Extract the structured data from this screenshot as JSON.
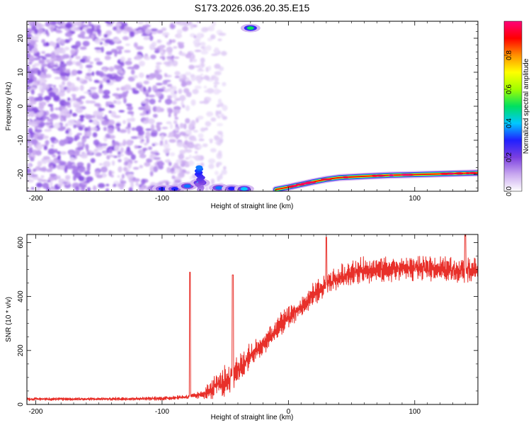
{
  "figure_title": "S173.2026.036.20.35.E15",
  "chart_data": [
    {
      "type": "heatmap",
      "name": "spectrogram",
      "title": "S173.2026.036.20.35.E15",
      "xlabel": "Height of straight line (km)",
      "ylabel": "Frequency (Hz)",
      "xlim": [
        -207,
        150
      ],
      "ylim": [
        -25,
        25
      ],
      "xticks": [
        -200,
        -100,
        0,
        100
      ],
      "xtick_labels": [
        "-200",
        "-100",
        "0",
        "100"
      ],
      "yticks": [
        -20,
        -10,
        0,
        10,
        20
      ],
      "ytick_labels": [
        "-20",
        "-10",
        "0",
        "10",
        "20"
      ],
      "grid": false,
      "features": {
        "noise_region_x": [
          -207,
          -75
        ],
        "strong_line": {
          "description": "high-amplitude narrowband line rising from near -25 Hz at the bottom edge to about -19.5 Hz at the right edge",
          "x": [
            -10,
            0,
            10,
            20,
            30,
            40,
            60,
            80,
            100,
            120,
            150
          ],
          "frequency_hz": [
            -24.5,
            -23.8,
            -23.0,
            -22.2,
            -21.5,
            -21.0,
            -20.6,
            -20.3,
            -20.1,
            -19.9,
            -19.6
          ]
        },
        "low_band_blobs": [
          {
            "x": -100,
            "frequency_hz": -24.3,
            "amplitude": 0.3
          },
          {
            "x": -90,
            "frequency_hz": -24.3,
            "amplitude": 0.3
          },
          {
            "x": -80,
            "frequency_hz": -23.5,
            "amplitude": 0.35
          },
          {
            "x": -70,
            "frequency_hz": -22.5,
            "amplitude": 0.4
          },
          {
            "x": -55,
            "frequency_hz": -24.0,
            "amplitude": 0.35
          },
          {
            "x": -45,
            "frequency_hz": -24.2,
            "amplitude": 0.3
          },
          {
            "x": -35,
            "frequency_hz": -24.3,
            "amplitude": 0.4
          },
          {
            "x": -30,
            "frequency_hz": 23.0,
            "amplitude": 0.5
          }
        ]
      },
      "colorbar": {
        "label": "Normalized spectral amplitude",
        "range": [
          0.0,
          1.0
        ],
        "ticks": [
          0.0,
          0.2,
          0.4,
          0.6,
          0.8
        ],
        "tick_labels": [
          "0.0",
          "0.2",
          "0.4",
          "0.6",
          "0.8"
        ],
        "colormap": [
          "#ffffff",
          "#c9a8ef",
          "#7b3fe0",
          "#2020ff",
          "#00c8ff",
          "#00e060",
          "#a0ff00",
          "#ffff00",
          "#ff9000",
          "#ff0000",
          "#ff007a"
        ]
      }
    },
    {
      "type": "line",
      "name": "snr",
      "title": "",
      "xlabel": "Height of straight line (km)",
      "ylabel": "SNR (10 * v/v)",
      "xlim": [
        -207,
        150
      ],
      "ylim": [
        0,
        630
      ],
      "xticks": [
        -200,
        -100,
        0,
        100
      ],
      "xtick_labels": [
        "-200",
        "-100",
        "0",
        "100"
      ],
      "yticks": [
        0,
        200,
        400,
        600
      ],
      "ytick_labels": [
        "0",
        "200",
        "400",
        "600"
      ],
      "grid": false,
      "series": [
        {
          "name": "SNR",
          "color": "#e8302a",
          "envelope_x": [
            -207,
            -150,
            -100,
            -80,
            -70,
            -60,
            -55,
            -50,
            -45,
            -40,
            -35,
            -30,
            -25,
            -20,
            -15,
            -10,
            -5,
            0,
            5,
            10,
            15,
            20,
            30,
            40,
            50,
            60,
            80,
            100,
            120,
            150
          ],
          "envelope_y": [
            20,
            20,
            22,
            28,
            35,
            55,
            70,
            80,
            110,
            130,
            150,
            180,
            200,
            220,
            250,
            275,
            300,
            320,
            340,
            360,
            380,
            410,
            440,
            470,
            490,
            500,
            500,
            505,
            500,
            500
          ],
          "spread_y": [
            8,
            8,
            10,
            12,
            18,
            55,
            70,
            90,
            80,
            80,
            70,
            70,
            60,
            60,
            60,
            60,
            60,
            55,
            55,
            55,
            55,
            60,
            60,
            65,
            65,
            65,
            65,
            65,
            65,
            65
          ],
          "annotations": [
            {
              "x": -44,
              "y": 480
            },
            {
              "x": -78,
              "y": 490
            },
            {
              "x": 30,
              "y": 620
            },
            {
              "x": 140,
              "y": 630
            }
          ]
        }
      ]
    }
  ]
}
